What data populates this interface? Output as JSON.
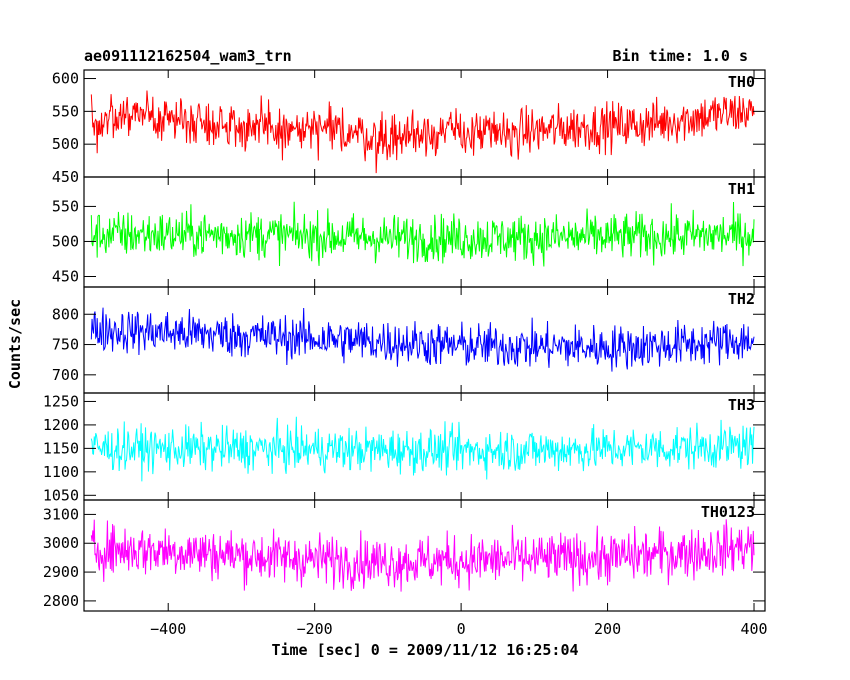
{
  "header": {
    "title": "ae091112162504_wam3_trn",
    "bin_time": "Bin time: 1.0 s"
  },
  "chart_data": {
    "type": "line",
    "xlabel": "Time [sec] 0 = 2009/11/12 16:25:04",
    "ylabel": "Counts/sec",
    "xlim": [
      -515,
      415
    ],
    "xticks": [
      -400,
      -200,
      0,
      200,
      400
    ],
    "x_step": 1.0,
    "x_range": [
      -505,
      400
    ],
    "panels": [
      {
        "name": "TH0",
        "color": "#ff0000",
        "ylim": [
          450,
          613
        ],
        "yticks": [
          450,
          500,
          550,
          600
        ],
        "trend": [
          [
            -505,
            530
          ],
          [
            -450,
            545
          ],
          [
            -350,
            535
          ],
          [
            -250,
            520
          ],
          [
            -150,
            520
          ],
          [
            -110,
            505
          ],
          [
            -50,
            520
          ],
          [
            50,
            515
          ],
          [
            150,
            525
          ],
          [
            250,
            530
          ],
          [
            350,
            545
          ],
          [
            400,
            550
          ]
        ],
        "noise": 32
      },
      {
        "name": "TH1",
        "color": "#00ff00",
        "ylim": [
          435,
          592
        ],
        "yticks": [
          450,
          500,
          550
        ],
        "trend": [
          [
            -505,
            510
          ],
          [
            -300,
            510
          ],
          [
            -100,
            505
          ],
          [
            100,
            505
          ],
          [
            300,
            508
          ],
          [
            400,
            510
          ]
        ],
        "noise": 30
      },
      {
        "name": "TH2",
        "color": "#0000ff",
        "ylim": [
          670,
          845
        ],
        "yticks": [
          700,
          750,
          800
        ],
        "trend": [
          [
            -505,
            775
          ],
          [
            -400,
            770
          ],
          [
            -200,
            760
          ],
          [
            0,
            748
          ],
          [
            200,
            745
          ],
          [
            300,
            750
          ],
          [
            400,
            758
          ]
        ],
        "noise": 33
      },
      {
        "name": "TH3",
        "color": "#00ffff",
        "ylim": [
          1040,
          1268
        ],
        "yticks": [
          1050,
          1100,
          1150,
          1200,
          1250
        ],
        "trend": [
          [
            -505,
            1150
          ],
          [
            -200,
            1148
          ],
          [
            0,
            1145
          ],
          [
            200,
            1148
          ],
          [
            400,
            1155
          ]
        ],
        "noise": 42
      },
      {
        "name": "TH0123",
        "color": "#ff00ff",
        "ylim": [
          2765,
          3150
        ],
        "yticks": [
          2800,
          2900,
          3000,
          3100
        ],
        "trend": [
          [
            -505,
            2980
          ],
          [
            -400,
            2975
          ],
          [
            -250,
            2950
          ],
          [
            -110,
            2935
          ],
          [
            0,
            2940
          ],
          [
            200,
            2950
          ],
          [
            350,
            2975
          ],
          [
            400,
            2995
          ]
        ],
        "noise": 80
      }
    ]
  }
}
